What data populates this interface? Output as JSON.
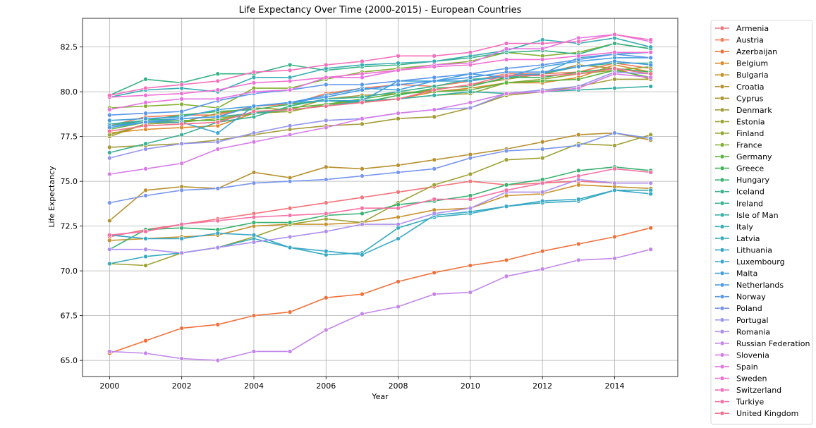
{
  "chart_data": {
    "type": "line",
    "title": "Life Expectancy Over Time (2000-2015) - European Countries",
    "xlabel": "Year",
    "ylabel": "Life Expectancy",
    "xlim": [
      1999.25,
      2015.75
    ],
    "ylim": [
      64.1,
      84.1
    ],
    "xticks": [
      2000,
      2002,
      2004,
      2006,
      2008,
      2010,
      2012,
      2014
    ],
    "yticks": [
      65.0,
      67.5,
      70.0,
      72.5,
      75.0,
      77.5,
      80.0,
      82.5
    ],
    "grid": true,
    "legend_position": "outside-right",
    "marker": "circle",
    "x": [
      2000,
      2001,
      2002,
      2003,
      2004,
      2005,
      2006,
      2007,
      2008,
      2009,
      2010,
      2011,
      2012,
      2013,
      2014,
      2015
    ],
    "series": [
      {
        "name": "Armenia",
        "color": "#f4737a",
        "values": [
          71.9,
          72.3,
          72.6,
          72.9,
          73.2,
          73.5,
          73.8,
          74.1,
          74.4,
          74.7,
          75.0,
          74.8,
          74.9,
          75.0,
          74.9,
          74.9
        ]
      },
      {
        "name": "Austria",
        "color": "#f47a58",
        "values": [
          78.1,
          78.6,
          78.7,
          78.7,
          79.2,
          79.3,
          79.9,
          80.2,
          80.4,
          80.3,
          80.6,
          81.0,
          81.0,
          81.1,
          81.6,
          81.3
        ]
      },
      {
        "name": "Azerbaijan",
        "color": "#f0703b",
        "values": [
          65.4,
          66.1,
          66.8,
          67.0,
          67.5,
          67.7,
          68.5,
          68.7,
          69.4,
          69.9,
          70.3,
          70.6,
          71.1,
          71.5,
          71.9,
          72.4
        ]
      },
      {
        "name": "Belgium",
        "color": "#dd8a2b",
        "values": [
          77.7,
          77.9,
          78.0,
          78.1,
          78.8,
          78.9,
          79.3,
          79.5,
          79.6,
          80.0,
          80.2,
          80.5,
          80.5,
          80.8,
          81.5,
          81.1
        ]
      },
      {
        "name": "Bulgaria",
        "color": "#c7922b",
        "values": [
          71.7,
          71.8,
          71.9,
          72.0,
          72.5,
          72.6,
          72.6,
          72.7,
          73.0,
          73.4,
          73.5,
          74.2,
          74.3,
          74.8,
          74.7,
          74.6
        ]
      },
      {
        "name": "Croatia",
        "color": "#b89030",
        "values": [
          72.8,
          74.5,
          74.7,
          74.6,
          75.5,
          75.2,
          75.8,
          75.7,
          75.9,
          76.2,
          76.5,
          76.8,
          77.2,
          77.6,
          77.7,
          77.3
        ]
      },
      {
        "name": "Cyprus",
        "color": "#ad9533",
        "values": [
          77.5,
          78.2,
          78.3,
          78.8,
          79.1,
          79.0,
          79.6,
          79.8,
          79.9,
          80.1,
          80.4,
          80.7,
          81.0,
          81.5,
          81.3,
          80.7
        ]
      },
      {
        "name": "Denmark",
        "color": "#a49b36",
        "values": [
          76.9,
          77.0,
          77.1,
          77.3,
          77.6,
          77.9,
          78.1,
          78.2,
          78.5,
          78.6,
          79.1,
          79.8,
          80.0,
          80.3,
          80.7,
          80.7
        ]
      },
      {
        "name": "Estonia",
        "color": "#9da233",
        "values": [
          70.4,
          70.3,
          71.0,
          71.3,
          71.9,
          72.6,
          72.9,
          72.7,
          73.8,
          74.8,
          75.4,
          76.2,
          76.3,
          77.1,
          77.0,
          77.6
        ]
      },
      {
        "name": "Finland",
        "color": "#93a832",
        "values": [
          77.6,
          78.2,
          78.3,
          78.5,
          78.8,
          78.9,
          79.3,
          79.4,
          79.6,
          79.8,
          79.9,
          80.5,
          80.7,
          81.0,
          81.2,
          81.4
        ]
      },
      {
        "name": "France",
        "color": "#84b032",
        "values": [
          79.1,
          79.2,
          79.3,
          79.1,
          80.2,
          80.2,
          80.7,
          81.1,
          81.3,
          81.5,
          81.7,
          82.2,
          82.0,
          82.2,
          82.7,
          82.4
        ]
      },
      {
        "name": "Germany",
        "color": "#5cb541",
        "values": [
          77.9,
          78.3,
          78.4,
          78.4,
          78.8,
          79.1,
          79.3,
          79.6,
          79.9,
          80.0,
          80.1,
          80.5,
          80.6,
          80.7,
          81.2,
          80.8
        ]
      },
      {
        "name": "Greece",
        "color": "#3bb458",
        "values": [
          78.1,
          78.4,
          78.7,
          78.9,
          79.0,
          79.3,
          79.5,
          79.4,
          79.8,
          80.2,
          80.3,
          80.8,
          80.8,
          81.1,
          81.3,
          81.1
        ]
      },
      {
        "name": "Hungary",
        "color": "#37b26f",
        "values": [
          71.2,
          72.3,
          72.4,
          72.3,
          72.7,
          72.7,
          73.1,
          73.2,
          73.7,
          73.9,
          74.2,
          74.8,
          75.1,
          75.6,
          75.8,
          75.6
        ]
      },
      {
        "name": "Iceland",
        "color": "#38b284",
        "values": [
          79.8,
          80.7,
          80.5,
          81.0,
          81.0,
          81.5,
          81.2,
          81.4,
          81.5,
          81.7,
          81.9,
          82.2,
          82.3,
          82.1,
          82.7,
          82.4
        ]
      },
      {
        "name": "Ireland",
        "color": "#38b195",
        "values": [
          76.6,
          77.1,
          77.6,
          78.3,
          78.6,
          79.2,
          79.6,
          79.7,
          80.0,
          80.3,
          80.7,
          80.8,
          81.0,
          81.4,
          81.6,
          81.6
        ]
      },
      {
        "name": "Isle of Man",
        "color": "#37b0a4",
        "values": [
          78.2,
          78.4,
          78.5,
          78.6,
          78.8,
          79.0,
          79.2,
          79.5,
          79.6,
          79.8,
          80.0,
          79.9,
          80.0,
          80.1,
          80.2,
          80.3
        ]
      },
      {
        "name": "Italy",
        "color": "#38aeb3",
        "values": [
          79.7,
          80.1,
          80.2,
          80.0,
          80.8,
          80.8,
          81.3,
          81.5,
          81.6,
          81.7,
          82.0,
          82.3,
          82.9,
          82.7,
          83.0,
          82.5
        ]
      },
      {
        "name": "Latvia",
        "color": "#37abbd",
        "values": [
          70.4,
          70.8,
          71.0,
          71.3,
          71.8,
          71.3,
          70.9,
          71.0,
          72.4,
          73.0,
          73.2,
          73.6,
          73.8,
          73.9,
          74.5,
          74.5
        ]
      },
      {
        "name": "Lithuania",
        "color": "#39a8c8",
        "values": [
          72.0,
          71.8,
          71.8,
          72.1,
          72.0,
          71.3,
          71.1,
          70.9,
          71.8,
          73.1,
          73.3,
          73.6,
          73.9,
          74.0,
          74.5,
          74.3
        ]
      },
      {
        "name": "Luxembourg",
        "color": "#3ea4d3",
        "values": [
          78.1,
          78.3,
          78.3,
          77.7,
          79.2,
          79.4,
          79.5,
          79.5,
          80.6,
          80.6,
          80.6,
          80.9,
          81.0,
          81.9,
          82.1,
          82.2
        ]
      },
      {
        "name": "Malta",
        "color": "#43a0dd",
        "values": [
          78.4,
          78.5,
          78.6,
          79.0,
          79.2,
          79.4,
          79.8,
          80.2,
          80.1,
          80.6,
          81.0,
          80.8,
          81.4,
          81.7,
          81.9,
          81.9
        ]
      },
      {
        "name": "Netherlands",
        "color": "#4b99e8",
        "values": [
          78.0,
          78.3,
          78.5,
          78.6,
          79.2,
          79.4,
          79.7,
          80.1,
          80.4,
          80.6,
          80.8,
          81.1,
          81.1,
          81.4,
          81.7,
          81.5
        ]
      },
      {
        "name": "Norway",
        "color": "#5b96ea",
        "values": [
          78.7,
          78.8,
          78.9,
          79.5,
          79.9,
          80.1,
          80.4,
          80.4,
          80.6,
          80.8,
          81.0,
          81.3,
          81.5,
          81.8,
          82.1,
          81.9
        ]
      },
      {
        "name": "Poland",
        "color": "#7895ee",
        "values": [
          73.8,
          74.2,
          74.5,
          74.6,
          74.9,
          75.0,
          75.1,
          75.3,
          75.5,
          75.7,
          76.3,
          76.7,
          76.8,
          77.0,
          77.7,
          77.4
        ]
      },
      {
        "name": "Portugal",
        "color": "#9594ef",
        "values": [
          76.3,
          76.8,
          77.1,
          77.2,
          77.7,
          78.1,
          78.4,
          78.5,
          78.8,
          79.0,
          79.1,
          79.9,
          80.1,
          80.3,
          81.1,
          81.0
        ]
      },
      {
        "name": "Romania",
        "color": "#ad8eee",
        "values": [
          71.2,
          71.2,
          71.0,
          71.3,
          71.6,
          71.9,
          72.2,
          72.6,
          72.6,
          73.2,
          73.5,
          74.4,
          74.4,
          75.1,
          74.9,
          74.9
        ]
      },
      {
        "name": "Russian Federation",
        "color": "#c386ea",
        "values": [
          65.5,
          65.4,
          65.1,
          65.0,
          65.5,
          65.5,
          66.7,
          67.6,
          68.0,
          68.7,
          68.8,
          69.7,
          70.1,
          70.6,
          70.7,
          71.2
        ]
      },
      {
        "name": "Slovenia",
        "color": "#d67ce7",
        "values": [
          75.4,
          75.7,
          76.0,
          76.8,
          77.2,
          77.6,
          78.0,
          78.5,
          78.8,
          79.0,
          79.4,
          79.9,
          80.0,
          80.2,
          81.0,
          80.8
        ]
      },
      {
        "name": "Spain",
        "color": "#e673e2",
        "values": [
          79.0,
          79.4,
          79.6,
          79.6,
          80.0,
          80.1,
          80.8,
          80.8,
          81.2,
          81.5,
          81.6,
          82.4,
          82.4,
          83.0,
          83.2,
          82.8
        ]
      },
      {
        "name": "Sweden",
        "color": "#f16fd3",
        "values": [
          79.7,
          79.8,
          79.9,
          80.1,
          80.5,
          80.6,
          80.8,
          81.0,
          81.2,
          81.4,
          81.5,
          81.8,
          81.8,
          82.0,
          82.2,
          82.2
        ]
      },
      {
        "name": "Switzerland",
        "color": "#f66ebd",
        "values": [
          79.8,
          80.2,
          80.4,
          80.6,
          81.1,
          81.2,
          81.5,
          81.7,
          82.0,
          82.0,
          82.2,
          82.7,
          82.7,
          82.8,
          83.2,
          82.9
        ]
      },
      {
        "name": "Turkiye",
        "color": "#f770a3",
        "values": [
          72.0,
          72.2,
          72.6,
          72.8,
          73.0,
          73.1,
          73.2,
          73.5,
          73.5,
          74.0,
          74.0,
          74.5,
          74.9,
          75.3,
          75.7,
          75.5
        ]
      },
      {
        "name": "United Kingdom",
        "color": "#f4708d",
        "values": [
          77.8,
          78.1,
          78.2,
          78.3,
          78.9,
          79.0,
          79.2,
          79.4,
          79.6,
          80.1,
          80.4,
          80.9,
          80.9,
          81.0,
          81.3,
          81.0
        ]
      }
    ]
  }
}
